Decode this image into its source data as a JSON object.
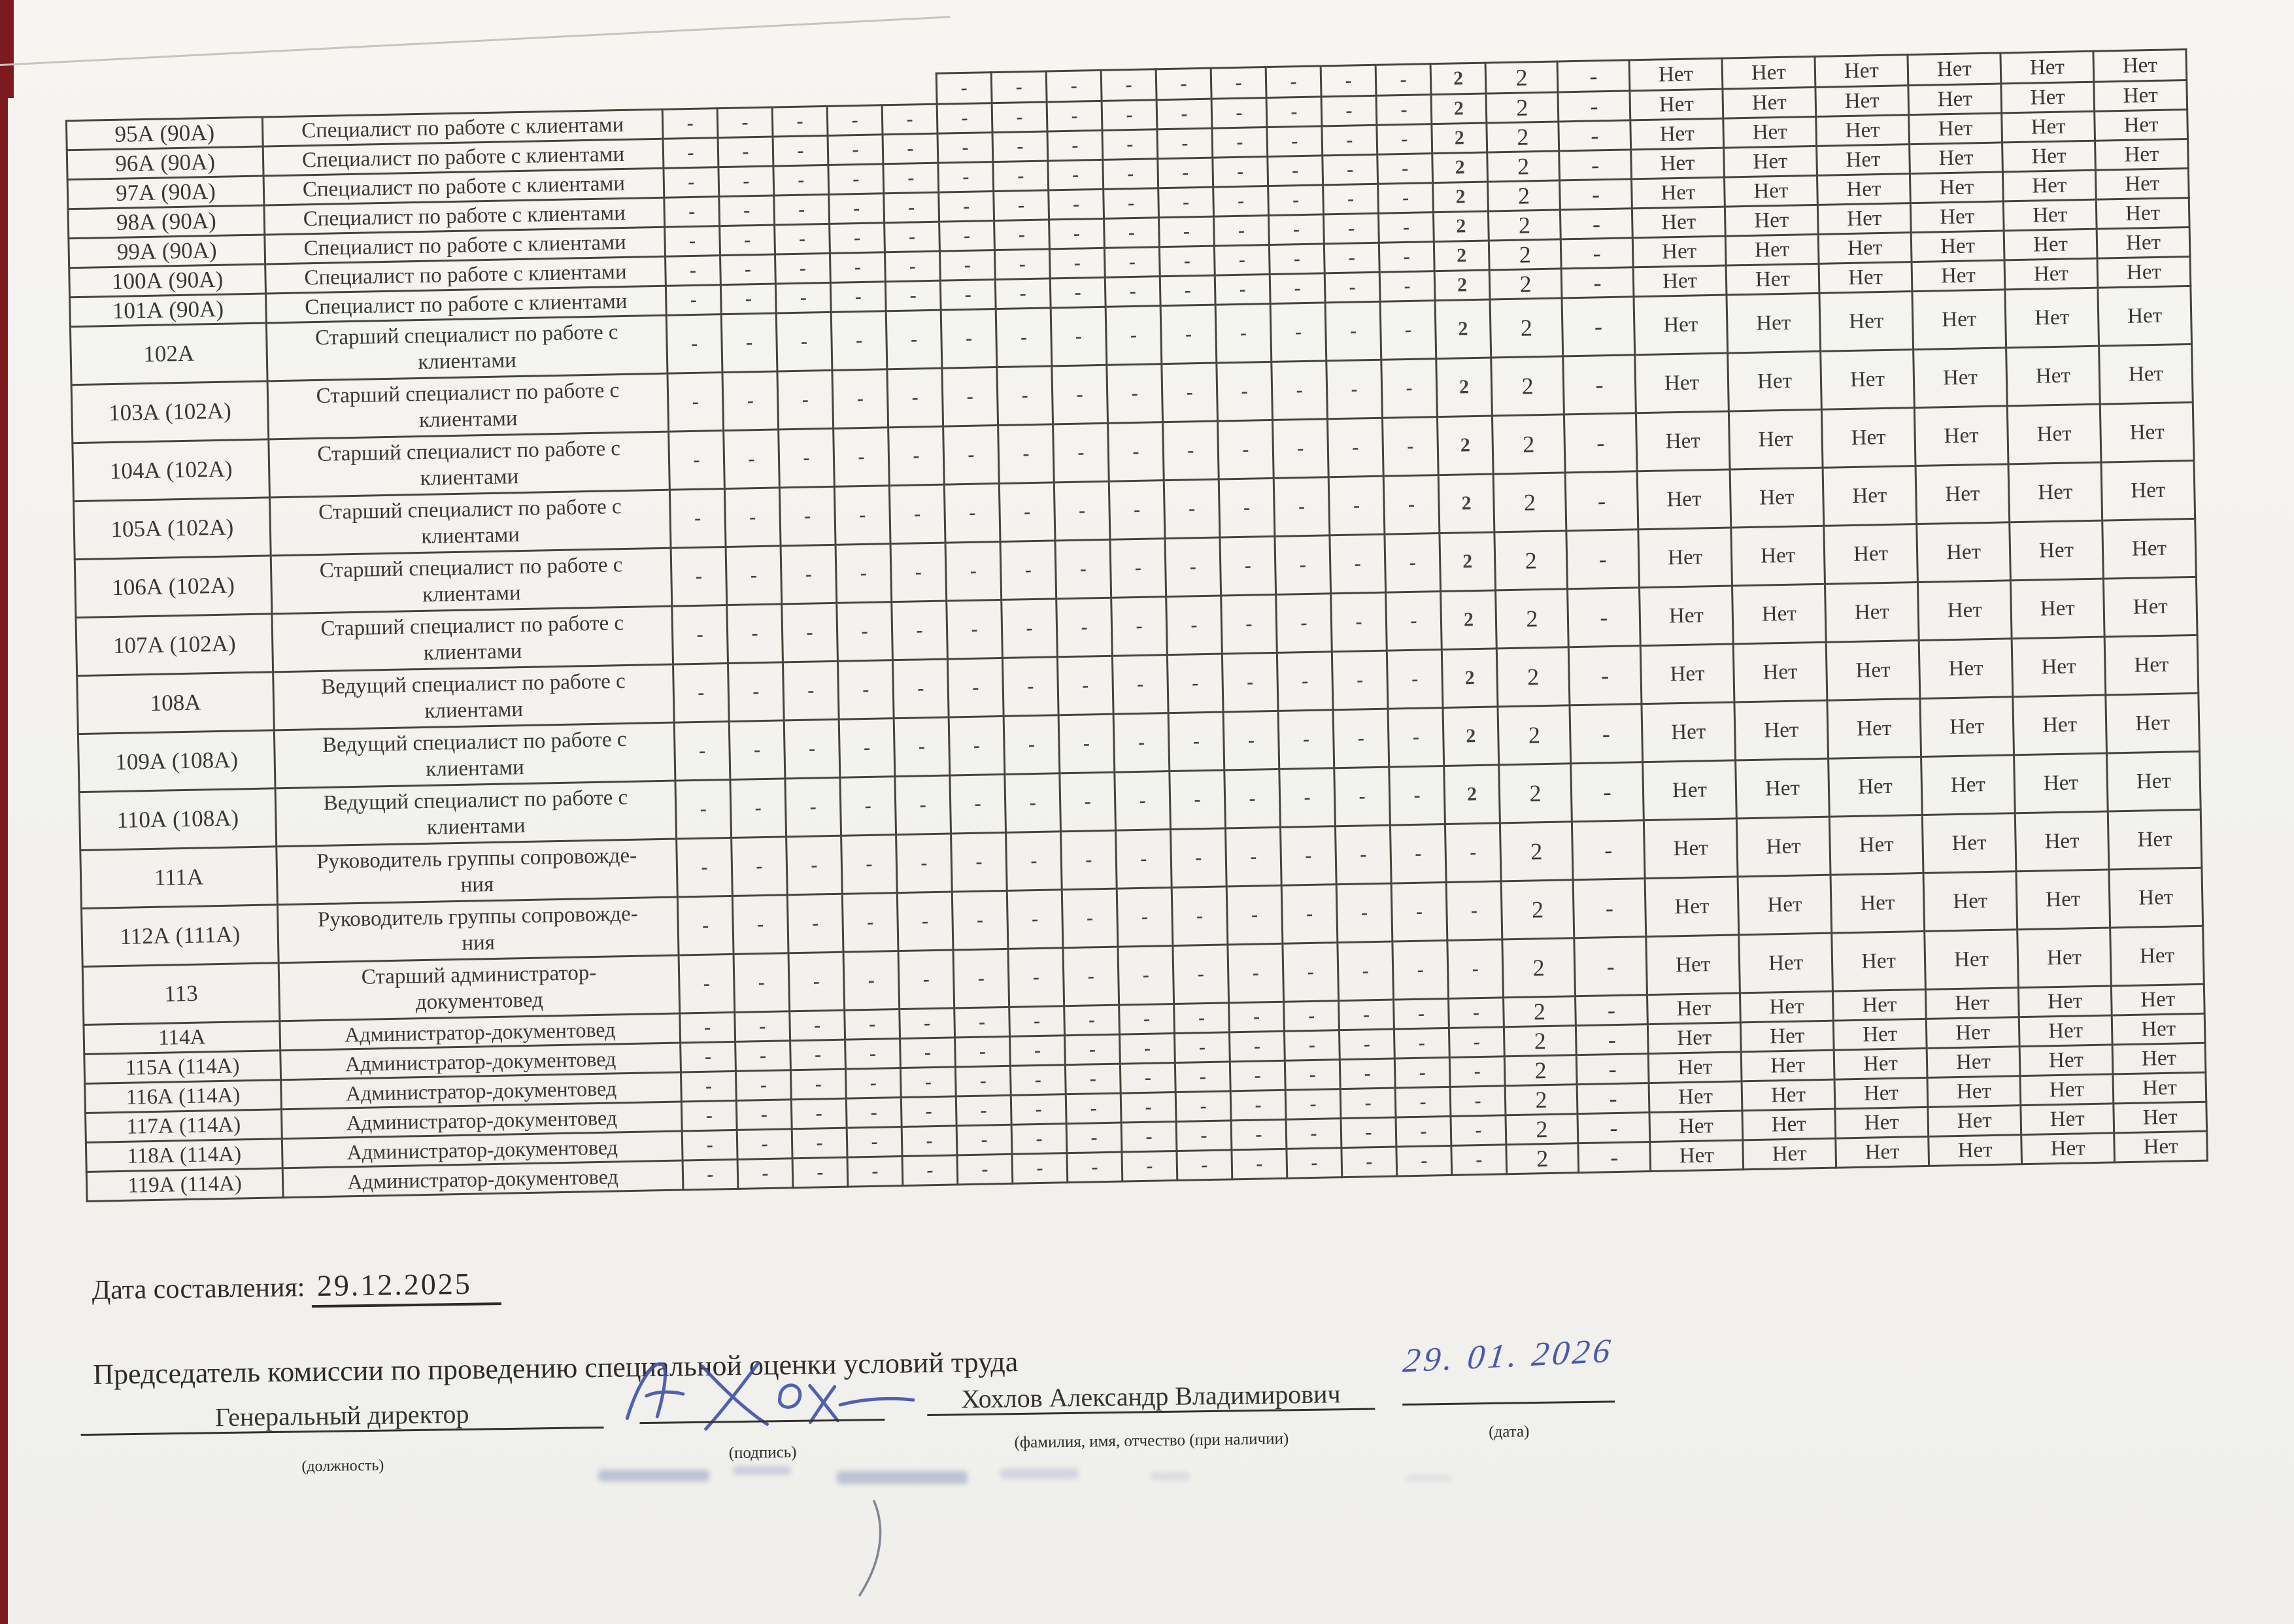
{
  "page": {
    "background": "#f2f1ed",
    "table_line_color": "#474439",
    "ink_blue": "#3b4da8",
    "edge_strip_color": "#7c1b1d"
  },
  "table": {
    "partial_top_row": {
      "num": "",
      "title": "",
      "factors": [
        "",
        "",
        "",
        "",
        "",
        "-",
        "-",
        "-",
        "-",
        "-",
        "-",
        "-",
        "-",
        "-",
        "2"
      ],
      "final": "2",
      "siz": "-",
      "guarantees": [
        "Нет",
        "Нет",
        "Нет",
        "Нет",
        "Нет",
        "Нет"
      ]
    },
    "rows": [
      {
        "num": "95А (90А)",
        "title": "Специалист по работе с клиентами",
        "factors": [
          "-",
          "-",
          "-",
          "-",
          "-",
          "-",
          "-",
          "-",
          "-",
          "-",
          "-",
          "-",
          "-",
          "-",
          "2"
        ],
        "final": "2",
        "siz": "-",
        "guarantees": [
          "Нет",
          "Нет",
          "Нет",
          "Нет",
          "Нет",
          "Нет"
        ]
      },
      {
        "num": "96А (90А)",
        "title": "Специалист по работе с клиентами",
        "factors": [
          "-",
          "-",
          "-",
          "-",
          "-",
          "-",
          "-",
          "-",
          "-",
          "-",
          "-",
          "-",
          "-",
          "-",
          "2"
        ],
        "final": "2",
        "siz": "-",
        "guarantees": [
          "Нет",
          "Нет",
          "Нет",
          "Нет",
          "Нет",
          "Нет"
        ]
      },
      {
        "num": "97А (90А)",
        "title": "Специалист по работе с клиентами",
        "factors": [
          "-",
          "-",
          "-",
          "-",
          "-",
          "-",
          "-",
          "-",
          "-",
          "-",
          "-",
          "-",
          "-",
          "-",
          "2"
        ],
        "final": "2",
        "siz": "-",
        "guarantees": [
          "Нет",
          "Нет",
          "Нет",
          "Нет",
          "Нет",
          "Нет"
        ]
      },
      {
        "num": "98А (90А)",
        "title": "Специалист по работе с клиентами",
        "factors": [
          "-",
          "-",
          "-",
          "-",
          "-",
          "-",
          "-",
          "-",
          "-",
          "-",
          "-",
          "-",
          "-",
          "-",
          "2"
        ],
        "final": "2",
        "siz": "-",
        "guarantees": [
          "Нет",
          "Нет",
          "Нет",
          "Нет",
          "Нет",
          "Нет"
        ]
      },
      {
        "num": "99А (90А)",
        "title": "Специалист по работе с клиентами",
        "factors": [
          "-",
          "-",
          "-",
          "-",
          "-",
          "-",
          "-",
          "-",
          "-",
          "-",
          "-",
          "-",
          "-",
          "-",
          "2"
        ],
        "final": "2",
        "siz": "-",
        "guarantees": [
          "Нет",
          "Нет",
          "Нет",
          "Нет",
          "Нет",
          "Нет"
        ]
      },
      {
        "num": "100А (90А)",
        "title": "Специалист по работе с клиентами",
        "factors": [
          "-",
          "-",
          "-",
          "-",
          "-",
          "-",
          "-",
          "-",
          "-",
          "-",
          "-",
          "-",
          "-",
          "-",
          "2"
        ],
        "final": "2",
        "siz": "-",
        "guarantees": [
          "Нет",
          "Нет",
          "Нет",
          "Нет",
          "Нет",
          "Нет"
        ]
      },
      {
        "num": "101А (90А)",
        "title": "Специалист по работе с клиентами",
        "factors": [
          "-",
          "-",
          "-",
          "-",
          "-",
          "-",
          "-",
          "-",
          "-",
          "-",
          "-",
          "-",
          "-",
          "-",
          "2"
        ],
        "final": "2",
        "siz": "-",
        "guarantees": [
          "Нет",
          "Нет",
          "Нет",
          "Нет",
          "Нет",
          "Нет"
        ]
      },
      {
        "num": "102А",
        "title": "Старший специалист по работе с\nклиентами",
        "factors": [
          "-",
          "-",
          "-",
          "-",
          "-",
          "-",
          "-",
          "-",
          "-",
          "-",
          "-",
          "-",
          "-",
          "-",
          "2"
        ],
        "final": "2",
        "siz": "-",
        "guarantees": [
          "Нет",
          "Нет",
          "Нет",
          "Нет",
          "Нет",
          "Нет"
        ]
      },
      {
        "num": "103А (102А)",
        "title": "Старший специалист по работе с\nклиентами",
        "factors": [
          "-",
          "-",
          "-",
          "-",
          "-",
          "-",
          "-",
          "-",
          "-",
          "-",
          "-",
          "-",
          "-",
          "-",
          "2"
        ],
        "final": "2",
        "siz": "-",
        "guarantees": [
          "Нет",
          "Нет",
          "Нет",
          "Нет",
          "Нет",
          "Нет"
        ]
      },
      {
        "num": "104А (102А)",
        "title": "Старший специалист по работе с\nклиентами",
        "factors": [
          "-",
          "-",
          "-",
          "-",
          "-",
          "-",
          "-",
          "-",
          "-",
          "-",
          "-",
          "-",
          "-",
          "-",
          "2"
        ],
        "final": "2",
        "siz": "-",
        "guarantees": [
          "Нет",
          "Нет",
          "Нет",
          "Нет",
          "Нет",
          "Нет"
        ]
      },
      {
        "num": "105А (102А)",
        "title": "Старший специалист по работе с\nклиентами",
        "factors": [
          "-",
          "-",
          "-",
          "-",
          "-",
          "-",
          "-",
          "-",
          "-",
          "-",
          "-",
          "-",
          "-",
          "-",
          "2"
        ],
        "final": "2",
        "siz": "-",
        "guarantees": [
          "Нет",
          "Нет",
          "Нет",
          "Нет",
          "Нет",
          "Нет"
        ]
      },
      {
        "num": "106А (102А)",
        "title": "Старший специалист по работе с\nклиентами",
        "factors": [
          "-",
          "-",
          "-",
          "-",
          "-",
          "-",
          "-",
          "-",
          "-",
          "-",
          "-",
          "-",
          "-",
          "-",
          "2"
        ],
        "final": "2",
        "siz": "-",
        "guarantees": [
          "Нет",
          "Нет",
          "Нет",
          "Нет",
          "Нет",
          "Нет"
        ]
      },
      {
        "num": "107А (102А)",
        "title": "Старший специалист по работе с\nклиентами",
        "factors": [
          "-",
          "-",
          "-",
          "-",
          "-",
          "-",
          "-",
          "-",
          "-",
          "-",
          "-",
          "-",
          "-",
          "-",
          "2"
        ],
        "final": "2",
        "siz": "-",
        "guarantees": [
          "Нет",
          "Нет",
          "Нет",
          "Нет",
          "Нет",
          "Нет"
        ]
      },
      {
        "num": "108А",
        "title": "Ведущий специалист по работе с\nклиентами",
        "factors": [
          "-",
          "-",
          "-",
          "-",
          "-",
          "-",
          "-",
          "-",
          "-",
          "-",
          "-",
          "-",
          "-",
          "-",
          "2"
        ],
        "final": "2",
        "siz": "-",
        "guarantees": [
          "Нет",
          "Нет",
          "Нет",
          "Нет",
          "Нет",
          "Нет"
        ]
      },
      {
        "num": "109А (108А)",
        "title": "Ведущий специалист по работе с\nклиентами",
        "factors": [
          "-",
          "-",
          "-",
          "-",
          "-",
          "-",
          "-",
          "-",
          "-",
          "-",
          "-",
          "-",
          "-",
          "-",
          "2"
        ],
        "final": "2",
        "siz": "-",
        "guarantees": [
          "Нет",
          "Нет",
          "Нет",
          "Нет",
          "Нет",
          "Нет"
        ]
      },
      {
        "num": "110А (108А)",
        "title": "Ведущий специалист по работе с\nклиентами",
        "factors": [
          "-",
          "-",
          "-",
          "-",
          "-",
          "-",
          "-",
          "-",
          "-",
          "-",
          "-",
          "-",
          "-",
          "-",
          "2"
        ],
        "final": "2",
        "siz": "-",
        "guarantees": [
          "Нет",
          "Нет",
          "Нет",
          "Нет",
          "Нет",
          "Нет"
        ]
      },
      {
        "num": "111А",
        "title": "Руководитель группы сопровожде-\nния",
        "factors": [
          "-",
          "-",
          "-",
          "-",
          "-",
          "-",
          "-",
          "-",
          "-",
          "-",
          "-",
          "-",
          "-",
          "-",
          "-"
        ],
        "final": "2",
        "siz": "-",
        "guarantees": [
          "Нет",
          "Нет",
          "Нет",
          "Нет",
          "Нет",
          "Нет"
        ]
      },
      {
        "num": "112А (111А)",
        "title": "Руководитель группы сопровожде-\nния",
        "factors": [
          "-",
          "-",
          "-",
          "-",
          "-",
          "-",
          "-",
          "-",
          "-",
          "-",
          "-",
          "-",
          "-",
          "-",
          "-"
        ],
        "final": "2",
        "siz": "-",
        "guarantees": [
          "Нет",
          "Нет",
          "Нет",
          "Нет",
          "Нет",
          "Нет"
        ]
      },
      {
        "num": "113",
        "title": "Старший администратор-\nдокументовед",
        "factors": [
          "-",
          "-",
          "-",
          "-",
          "-",
          "-",
          "-",
          "-",
          "-",
          "-",
          "-",
          "-",
          "-",
          "-",
          "-"
        ],
        "final": "2",
        "siz": "-",
        "guarantees": [
          "Нет",
          "Нет",
          "Нет",
          "Нет",
          "Нет",
          "Нет"
        ]
      },
      {
        "num": "114А",
        "title": "Администратор-документовед",
        "factors": [
          "-",
          "-",
          "-",
          "-",
          "-",
          "-",
          "-",
          "-",
          "-",
          "-",
          "-",
          "-",
          "-",
          "-",
          "-"
        ],
        "final": "2",
        "siz": "-",
        "guarantees": [
          "Нет",
          "Нет",
          "Нет",
          "Нет",
          "Нет",
          "Нет"
        ]
      },
      {
        "num": "115А (114А)",
        "title": "Администратор-документовед",
        "factors": [
          "-",
          "-",
          "-",
          "-",
          "-",
          "-",
          "-",
          "-",
          "-",
          "-",
          "-",
          "-",
          "-",
          "-",
          "-"
        ],
        "final": "2",
        "siz": "-",
        "guarantees": [
          "Нет",
          "Нет",
          "Нет",
          "Нет",
          "Нет",
          "Нет"
        ]
      },
      {
        "num": "116А (114А)",
        "title": "Администратор-документовед",
        "factors": [
          "-",
          "-",
          "-",
          "-",
          "-",
          "-",
          "-",
          "-",
          "-",
          "-",
          "-",
          "-",
          "-",
          "-",
          "-"
        ],
        "final": "2",
        "siz": "-",
        "guarantees": [
          "Нет",
          "Нет",
          "Нет",
          "Нет",
          "Нет",
          "Нет"
        ]
      },
      {
        "num": "117А (114А)",
        "title": "Администратор-документовед",
        "factors": [
          "-",
          "-",
          "-",
          "-",
          "-",
          "-",
          "-",
          "-",
          "-",
          "-",
          "-",
          "-",
          "-",
          "-",
          "-"
        ],
        "final": "2",
        "siz": "-",
        "guarantees": [
          "Нет",
          "Нет",
          "Нет",
          "Нет",
          "Нет",
          "Нет"
        ]
      },
      {
        "num": "118А (114А)",
        "title": "Администратор-документовед",
        "factors": [
          "-",
          "-",
          "-",
          "-",
          "-",
          "-",
          "-",
          "-",
          "-",
          "-",
          "-",
          "-",
          "-",
          "-",
          "-"
        ],
        "final": "2",
        "siz": "-",
        "guarantees": [
          "Нет",
          "Нет",
          "Нет",
          "Нет",
          "Нет",
          "Нет"
        ]
      },
      {
        "num": "119А (114А)",
        "title": "Администратор-документовед",
        "factors": [
          "-",
          "-",
          "-",
          "-",
          "-",
          "-",
          "-",
          "-",
          "-",
          "-",
          "-",
          "-",
          "-",
          "-",
          "-"
        ],
        "final": "2",
        "siz": "-",
        "guarantees": [
          "Нет",
          "Нет",
          "Нет",
          "Нет",
          "Нет",
          "Нет"
        ]
      }
    ]
  },
  "footer": {
    "date_label": "Дата составления:",
    "date_value": "29.12.2025",
    "chairman_line": "Председатель комиссии по проведению специальной оценки условий труда",
    "position_value": "Генеральный директор",
    "position_caption": "(должность)",
    "signature_caption": "(подпись)",
    "name_value": "Хохлов Александр Владимирович",
    "name_caption": "(фамилия, имя, отчество (при наличии)",
    "handwritten_date": "29. 01. 2026",
    "date_caption": "(дата)"
  }
}
